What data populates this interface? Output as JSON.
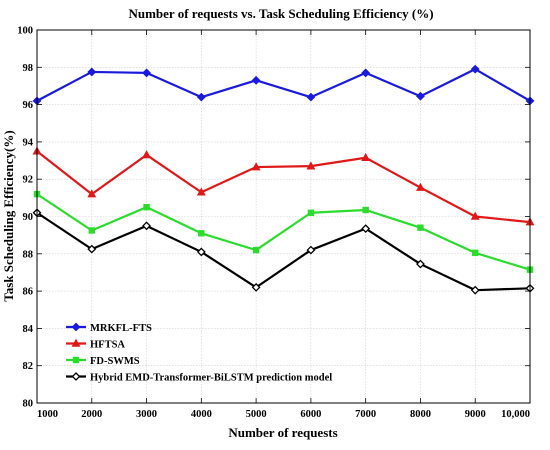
{
  "chart_data": {
    "type": "line",
    "title": "Number of requests vs. Task Scheduling Efficiency (%)",
    "xlabel": "Number of requests",
    "ylabel": "Task Scheduling Efficiency(%)",
    "x": [
      1000,
      2000,
      3000,
      4000,
      5000,
      6000,
      7000,
      8000,
      9000,
      10000
    ],
    "x_tick_labels": [
      "1000",
      "2000",
      "3000",
      "4000",
      "5000",
      "6000",
      "7000",
      "8000",
      "9000",
      "10,000"
    ],
    "xlim": [
      1000,
      10000
    ],
    "ylim": [
      80,
      100
    ],
    "y_ticks": [
      80,
      82,
      84,
      86,
      88,
      90,
      92,
      94,
      96,
      98,
      100
    ],
    "grid": true,
    "legend_position": "bottom-left",
    "series": [
      {
        "name": "MRKFL-FTS",
        "color": "#1a1adf",
        "marker": "diamond",
        "values": [
          96.2,
          97.75,
          97.7,
          96.4,
          97.3,
          96.4,
          97.7,
          96.45,
          97.9,
          96.2
        ]
      },
      {
        "name": "HFTSA",
        "color": "#e01818",
        "marker": "triangle",
        "values": [
          93.5,
          91.2,
          93.3,
          91.3,
          92.65,
          92.7,
          93.15,
          91.55,
          90.0,
          89.7
        ]
      },
      {
        "name": "FD-SWMS",
        "color": "#2cdc2c",
        "marker": "square",
        "values": [
          91.2,
          89.25,
          90.5,
          89.1,
          88.2,
          90.2,
          90.35,
          89.4,
          88.05,
          87.15
        ]
      },
      {
        "name": "Hybrid EMD-Transformer-BiLSTM prediction model",
        "color": "#000000",
        "marker": "diamond",
        "values": [
          90.2,
          88.25,
          89.5,
          88.1,
          86.2,
          88.2,
          89.35,
          87.45,
          86.05,
          86.15
        ]
      }
    ]
  }
}
